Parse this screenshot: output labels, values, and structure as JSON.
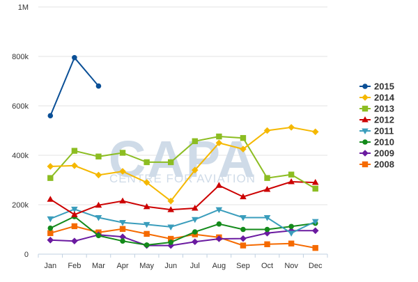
{
  "chart_data": {
    "type": "line",
    "categories": [
      "Jan",
      "Feb",
      "Mar",
      "Apr",
      "May",
      "Jun",
      "Jul",
      "Aug",
      "Sep",
      "Oct",
      "Nov",
      "Dec"
    ],
    "ylim": [
      0,
      1000000
    ],
    "yticks": [
      {
        "value": 0,
        "label": "0"
      },
      {
        "value": 200000,
        "label": "200k"
      },
      {
        "value": 400000,
        "label": "400k"
      },
      {
        "value": 600000,
        "label": "600k"
      },
      {
        "value": 800000,
        "label": "800k"
      },
      {
        "value": 1000000,
        "label": "1M"
      }
    ],
    "grid": true,
    "legend_position": "right",
    "watermark": {
      "main": "CAPA",
      "sub": "CENTRE FOR AVIATION"
    },
    "series": [
      {
        "name": "2015",
        "color": "#0a4f96",
        "marker": "circle",
        "values": [
          560000,
          795000,
          680000,
          null,
          null,
          null,
          null,
          null,
          null,
          null,
          null,
          null
        ]
      },
      {
        "name": "2014",
        "color": "#f5b800",
        "marker": "diamond",
        "values": [
          355000,
          358000,
          320000,
          335000,
          290000,
          215000,
          340000,
          450000,
          425000,
          500000,
          513000,
          495000
        ]
      },
      {
        "name": "2013",
        "color": "#8cbd22",
        "marker": "square",
        "values": [
          308000,
          418000,
          395000,
          410000,
          372000,
          372000,
          457000,
          476000,
          470000,
          308000,
          322000,
          265000
        ]
      },
      {
        "name": "2012",
        "color": "#cc0000",
        "marker": "triangle-up",
        "values": [
          222000,
          160000,
          198000,
          215000,
          192000,
          180000,
          186000,
          278000,
          232000,
          262000,
          293000,
          290000
        ]
      },
      {
        "name": "2011",
        "color": "#3a9dbc",
        "marker": "triangle-down",
        "values": [
          143000,
          182000,
          148000,
          128000,
          120000,
          110000,
          140000,
          180000,
          148000,
          148000,
          85000,
          132000
        ]
      },
      {
        "name": "2010",
        "color": "#138a1a",
        "marker": "circle",
        "values": [
          105000,
          152000,
          75000,
          53000,
          37000,
          48000,
          90000,
          122000,
          100000,
          100000,
          112000,
          125000
        ]
      },
      {
        "name": "2009",
        "color": "#6a1aa0",
        "marker": "diamond",
        "values": [
          57000,
          53000,
          78000,
          70000,
          35000,
          35000,
          50000,
          62000,
          63000,
          85000,
          95000,
          95000
        ]
      },
      {
        "name": "2008",
        "color": "#f56a00",
        "marker": "square",
        "values": [
          85000,
          113000,
          88000,
          102000,
          82000,
          62000,
          80000,
          68000,
          35000,
          40000,
          43000,
          25000
        ]
      }
    ]
  }
}
